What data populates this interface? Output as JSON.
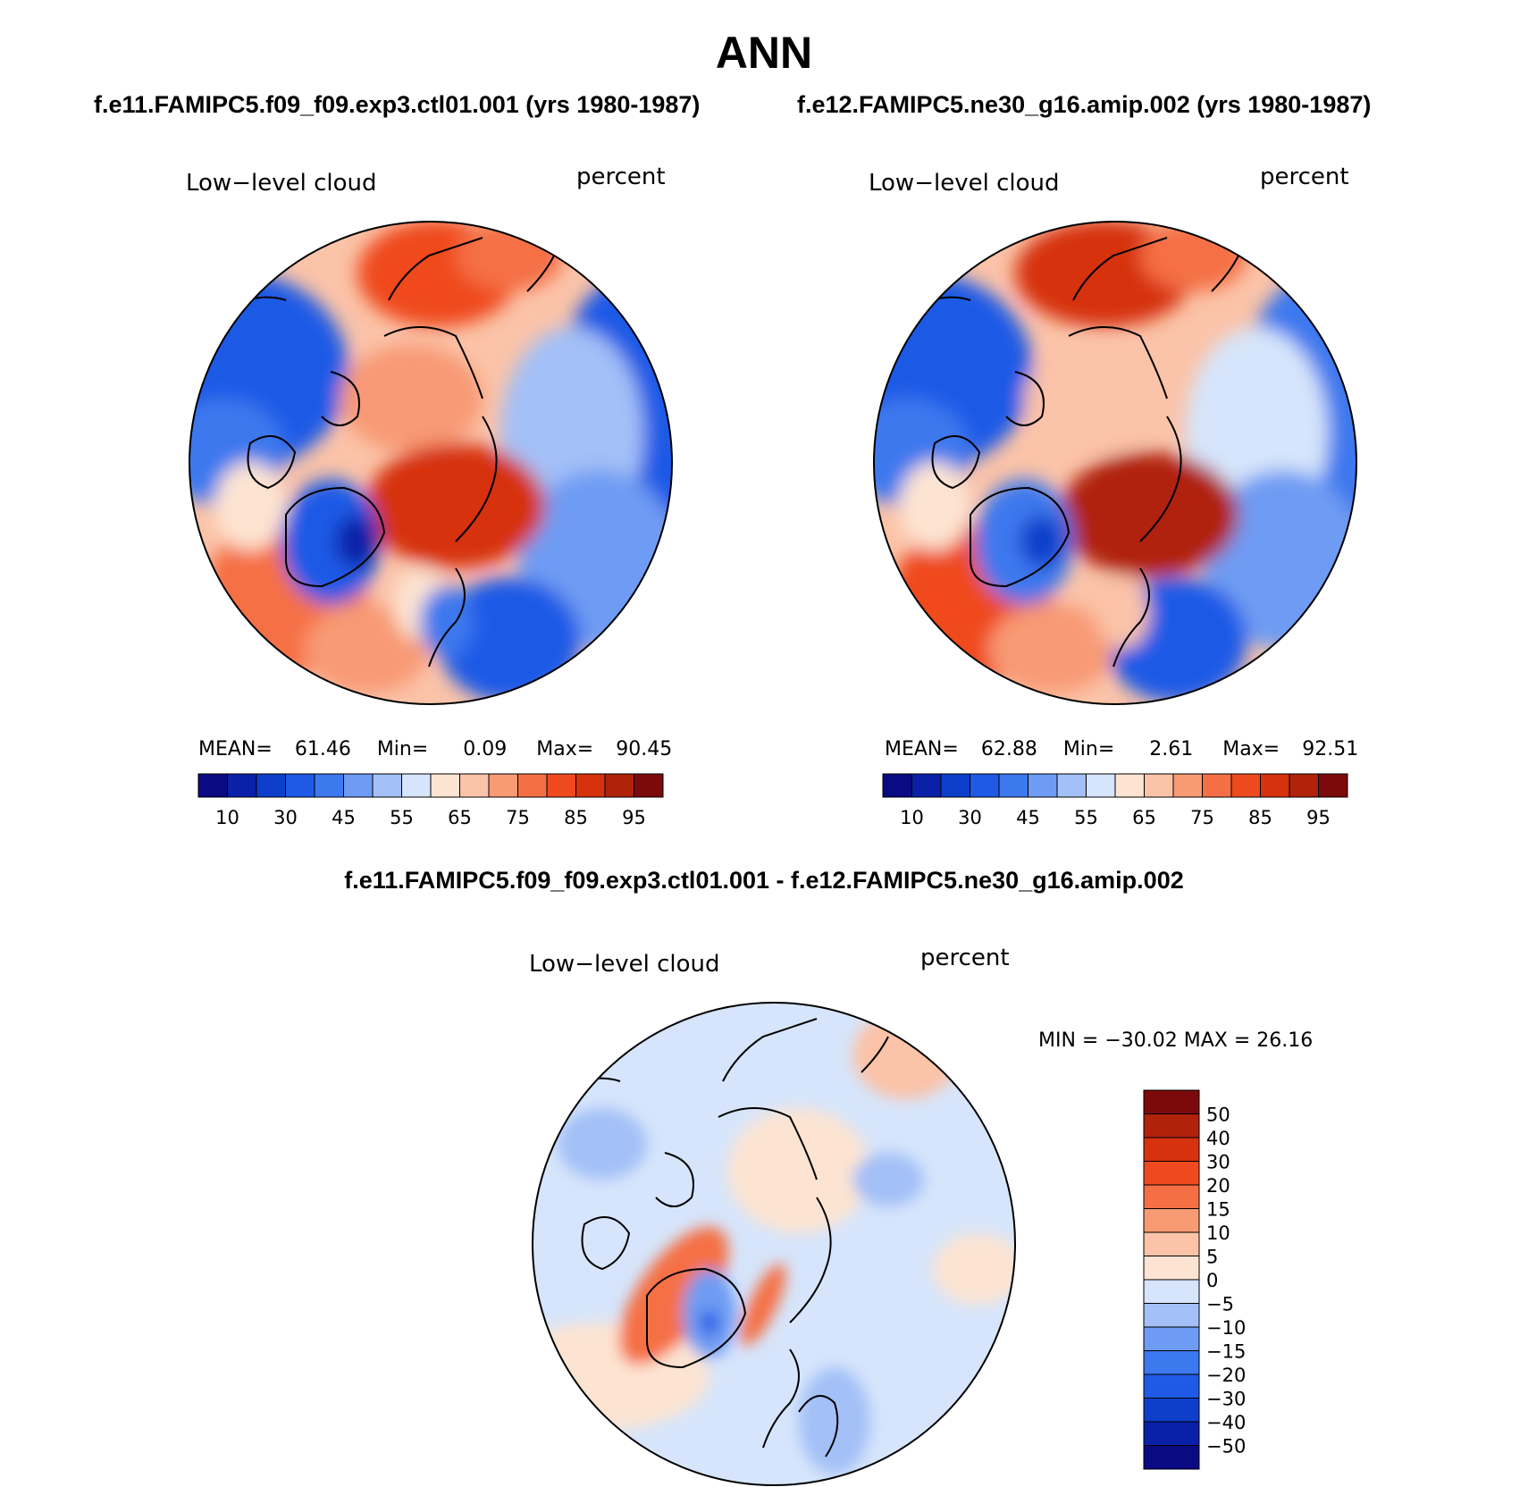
{
  "figure": {
    "title": "ANN",
    "diff_title": "f.e11.FAMIPC5.f09_f09.exp3.ctl01.001 - f.e12.FAMIPC5.ne30_g16.amip.002"
  },
  "panels": [
    {
      "case_title": "f.e11.FAMIPC5.f09_f09.exp3.ctl01.001 (yrs 1980-1987)",
      "variable": "Low−level cloud",
      "units": "percent",
      "mean_label": "MEAN=",
      "mean": "61.46",
      "min_label": "Min=",
      "min": "0.09",
      "max_label": "Max=",
      "max": "90.45"
    },
    {
      "case_title": "f.e12.FAMIPC5.ne30_g16.amip.002 (yrs 1980-1987)",
      "variable": "Low−level cloud",
      "units": "percent",
      "mean_label": "MEAN=",
      "mean": "62.88",
      "min_label": "Min=",
      "min": "2.61",
      "max_label": "Max=",
      "max": "92.51"
    }
  ],
  "diff_panel": {
    "variable": "Low−level cloud",
    "units": "percent",
    "minmax_text": "MIN = −30.02  MAX =   26.16"
  },
  "colorbar": {
    "colors": [
      "#0a0a82",
      "#0a20a8",
      "#0d3fcb",
      "#1f5ae6",
      "#3c78ee",
      "#6e9bf3",
      "#a3c0f7",
      "#d6e5fb",
      "#fde4d2",
      "#fbc3a8",
      "#f89a74",
      "#f56f45",
      "#ef4a1f",
      "#d6320d",
      "#b0220a",
      "#7d0a0a"
    ],
    "ticks": [
      "10",
      "30",
      "45",
      "55",
      "65",
      "75",
      "85",
      "95"
    ]
  },
  "diff_colorbar": {
    "colors": [
      "#7d0a0a",
      "#b0220a",
      "#d6320d",
      "#ef4a1f",
      "#f56f45",
      "#f89a74",
      "#fbc3a8",
      "#fde4d2",
      "#d6e5fb",
      "#a3c0f7",
      "#6e9bf3",
      "#3c78ee",
      "#1f5ae6",
      "#0d3fcb",
      "#0a20a8",
      "#0a0a82"
    ],
    "ticks": [
      "50",
      "40",
      "30",
      "20",
      "15",
      "10",
      "5",
      "0",
      "−5",
      "−10",
      "−15",
      "−20",
      "−30",
      "−40",
      "−50"
    ]
  }
}
